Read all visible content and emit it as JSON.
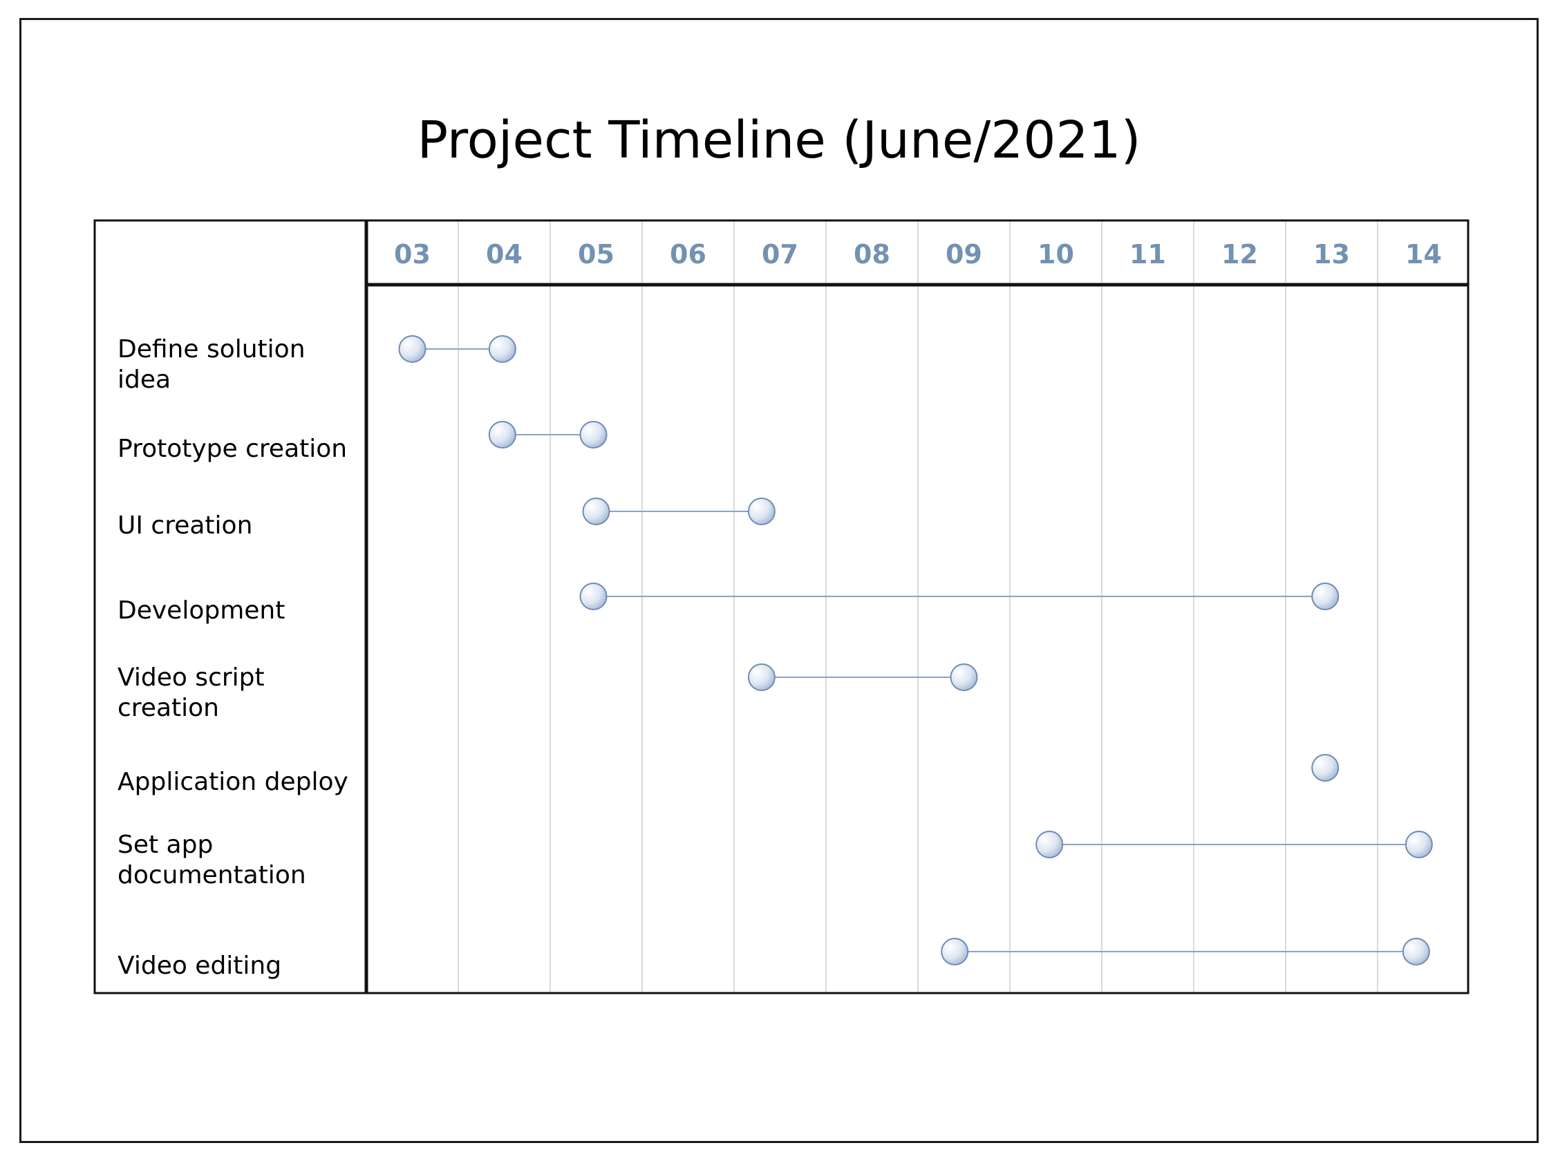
{
  "title": "Project Timeline (June/2021)",
  "days": [
    "03",
    "04",
    "05",
    "06",
    "07",
    "08",
    "09",
    "10",
    "11",
    "12",
    "13",
    "14"
  ],
  "colors": {
    "day_header": "#7391b3",
    "connector": "#8aa3c4",
    "milestone_fill_light": "#ffffff",
    "milestone_fill_dark": "#a9bcd8",
    "milestone_stroke": "#6f8cb3",
    "gridline": "#c9ced6",
    "border": "#111111"
  },
  "tasks": [
    {
      "label_lines": [
        "Define solution",
        "idea"
      ],
      "start": 3.0,
      "end": 3.98
    },
    {
      "label_lines": [
        "Prototype creation"
      ],
      "start": 3.98,
      "end": 4.97
    },
    {
      "label_lines": [
        "UI creation"
      ],
      "start": 5.0,
      "end": 6.8
    },
    {
      "label_lines": [
        "Development"
      ],
      "start": 4.97,
      "end": 12.93
    },
    {
      "label_lines": [
        "Video script",
        "creation"
      ],
      "start": 6.8,
      "end": 9.0
    },
    {
      "label_lines": [
        "Application deploy"
      ],
      "start": 12.93,
      "end": 12.93
    },
    {
      "label_lines": [
        "Set app",
        "documentation"
      ],
      "start": 9.93,
      "end": 13.95
    },
    {
      "label_lines": [
        "Video editing"
      ],
      "start": 8.9,
      "end": 13.92
    }
  ]
}
